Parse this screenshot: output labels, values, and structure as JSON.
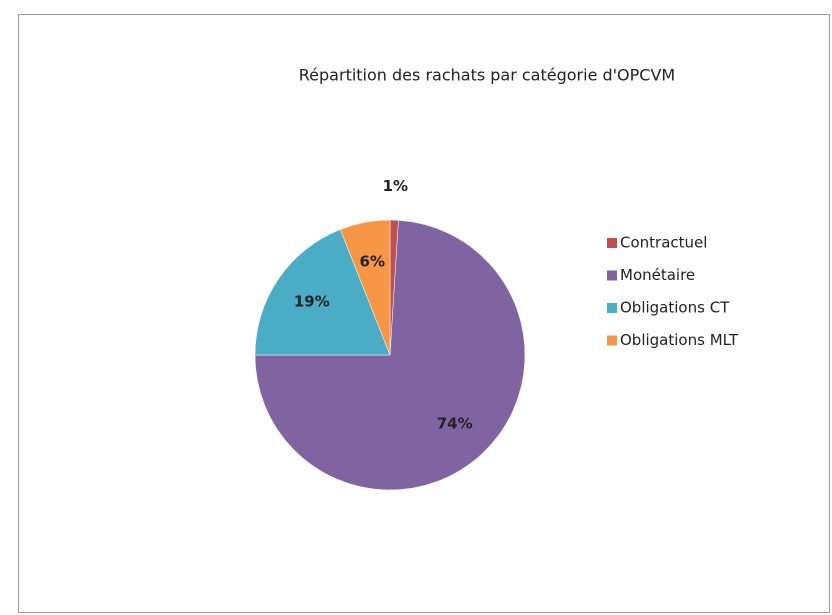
{
  "chart_data": {
    "type": "pie",
    "title": "Répartition des rachats par catégorie d'OPCVM",
    "categories": [
      "Contractuel",
      "Monétaire",
      "Obligations CT",
      "Obligations MLT"
    ],
    "values": [
      1,
      74,
      19,
      6
    ],
    "value_labels": [
      "1%",
      "74%",
      "19%",
      "6%"
    ],
    "colors": [
      "#c0504d",
      "#8064a2",
      "#4bacc6",
      "#f79646"
    ],
    "legend": "right"
  }
}
